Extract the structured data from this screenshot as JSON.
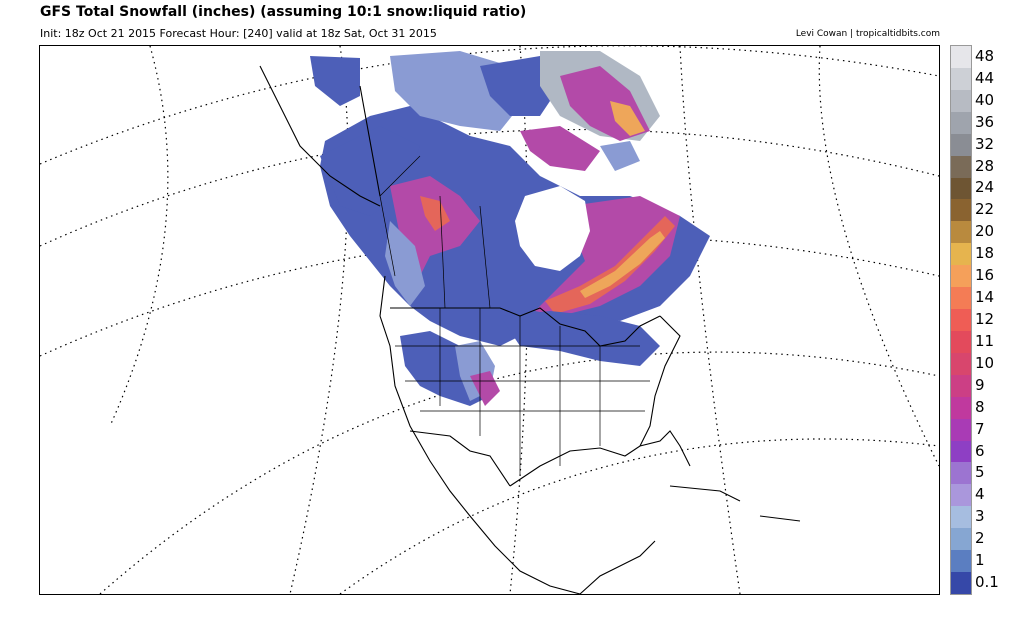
{
  "header": {
    "title": "GFS Total Snowfall (inches) (assuming 10:1 snow:liquid ratio)",
    "subtitle": "Init: 18z Oct 21 2015   Forecast Hour: [240]   valid at 18z Sat, Oct 31 2015",
    "credit": "Levi Cowan | tropicaltidbits.com"
  },
  "legend": {
    "levels": [
      {
        "label": "48",
        "color": "#e6e6ea"
      },
      {
        "label": "44",
        "color": "#cdd0d6"
      },
      {
        "label": "40",
        "color": "#b7bbc3"
      },
      {
        "label": "36",
        "color": "#9fa4ad"
      },
      {
        "label": "32",
        "color": "#8a8d94"
      },
      {
        "label": "28",
        "color": "#7a6b58"
      },
      {
        "label": "24",
        "color": "#6e5533"
      },
      {
        "label": "22",
        "color": "#8a6330"
      },
      {
        "label": "20",
        "color": "#b98a3e"
      },
      {
        "label": "18",
        "color": "#e6b44e"
      },
      {
        "label": "16",
        "color": "#f5a05a"
      },
      {
        "label": "14",
        "color": "#f47c55"
      },
      {
        "label": "12",
        "color": "#ef5d55"
      },
      {
        "label": "11",
        "color": "#e34a5c"
      },
      {
        "label": "10",
        "color": "#d8466d"
      },
      {
        "label": "9",
        "color": "#cc3f85"
      },
      {
        "label": "8",
        "color": "#c0399e"
      },
      {
        "label": "7",
        "color": "#a93bb5"
      },
      {
        "label": "6",
        "color": "#8e3fc4"
      },
      {
        "label": "5",
        "color": "#9c74d1"
      },
      {
        "label": "4",
        "color": "#aa97dc"
      },
      {
        "label": "3",
        "color": "#a6bde0"
      },
      {
        "label": "2",
        "color": "#86a6d2"
      },
      {
        "label": "1",
        "color": "#5b7ec1"
      },
      {
        "label": "0.1",
        "color": "#3648a8"
      }
    ]
  },
  "map": {
    "colors": {
      "light_snow": "#4d5fb8",
      "moderate_snow": "#8a9bd3",
      "heavy_snow": "#b34aa8",
      "very_heavy_snow": "#e4665a",
      "extreme_snow": "#eea65a",
      "glacier": "#b0b8c4",
      "border": "#000000",
      "graticule": "#000000"
    }
  }
}
